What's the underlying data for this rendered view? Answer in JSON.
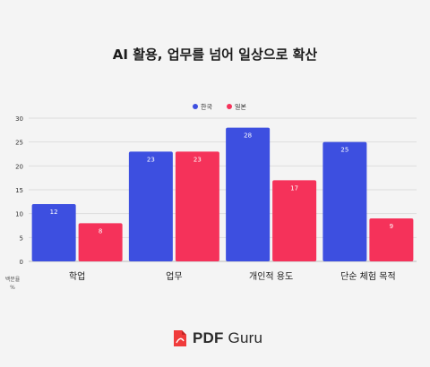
{
  "chart_data": {
    "type": "bar",
    "title": "AI 활용, 업무를 넘어 일상으로 확산",
    "categories": [
      "학업",
      "업무",
      "개인적 용도",
      "단순 체험 목적"
    ],
    "series": [
      {
        "name": "한국",
        "color": "#3d4fe0",
        "values": [
          12,
          23,
          28,
          25
        ]
      },
      {
        "name": "일본",
        "color": "#f5325a",
        "values": [
          8,
          23,
          17,
          9
        ]
      }
    ],
    "ylabel": "백분율 %",
    "ylabel_lines": [
      "백분율",
      "%"
    ],
    "ylim": [
      0,
      30
    ],
    "yticks": [
      0,
      5,
      10,
      15,
      20,
      25,
      30
    ],
    "grid": true,
    "legend": "top-center"
  },
  "footer": {
    "brand_pdf": "PDF",
    "brand_guru": "Guru",
    "logo_icon": "pdf-document-icon"
  }
}
